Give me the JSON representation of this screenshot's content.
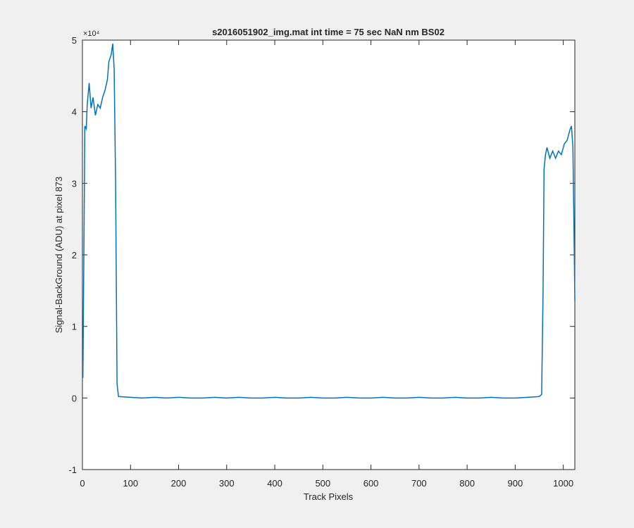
{
  "chart_data": {
    "type": "line",
    "title": "s2016051902_img.mat int time = 75 sec  NaN nm BS02",
    "x_label": "Track Pixels",
    "y_label": "Signal-BackGround (ADU) at pixel 873",
    "y_exponent_label": "×10⁴",
    "color": "#0072bd",
    "x": [
      1,
      3,
      5,
      8,
      10,
      14,
      18,
      22,
      27,
      32,
      37,
      42,
      47,
      52,
      55,
      60,
      63,
      66,
      69,
      72,
      75,
      100,
      125,
      150,
      175,
      200,
      225,
      250,
      275,
      300,
      325,
      350,
      375,
      400,
      425,
      450,
      475,
      500,
      525,
      550,
      575,
      600,
      625,
      650,
      675,
      700,
      725,
      750,
      775,
      800,
      825,
      850,
      875,
      900,
      925,
      950,
      955,
      958,
      960,
      963,
      966,
      972,
      978,
      984,
      990,
      996,
      1002,
      1008,
      1014,
      1017,
      1020,
      1022,
      1024
    ],
    "values": [
      0.28,
      2.0,
      3.8,
      3.76,
      4.1,
      4.4,
      4.05,
      4.2,
      3.95,
      4.1,
      4.05,
      4.2,
      4.3,
      4.45,
      4.7,
      4.8,
      4.95,
      4.6,
      3.0,
      0.2,
      0.02,
      0.01,
      0.0,
      0.01,
      0.0,
      0.01,
      0.0,
      0.0,
      0.01,
      0.0,
      0.01,
      0.0,
      0.0,
      0.01,
      0.0,
      0.0,
      0.01,
      0.0,
      0.0,
      0.01,
      0.0,
      0.0,
      0.01,
      0.0,
      0.0,
      0.01,
      0.0,
      0.0,
      0.01,
      0.0,
      0.0,
      0.01,
      0.0,
      0.0,
      0.01,
      0.02,
      0.05,
      1.5,
      3.2,
      3.4,
      3.5,
      3.35,
      3.45,
      3.35,
      3.45,
      3.4,
      3.55,
      3.6,
      3.75,
      3.8,
      3.5,
      2.5,
      1.35
    ],
    "xlim": [
      0,
      1024
    ],
    "ylim": [
      -1,
      5
    ],
    "xticks": [
      0,
      100,
      200,
      300,
      400,
      500,
      600,
      700,
      800,
      900,
      1000
    ],
    "yticks": [
      -1,
      0,
      1,
      2,
      3,
      4,
      5
    ]
  }
}
